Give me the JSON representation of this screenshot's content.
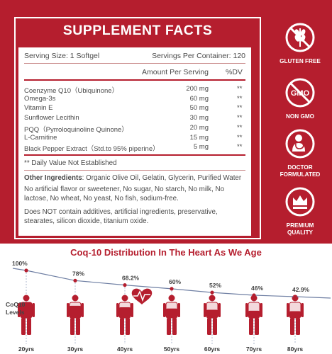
{
  "facts": {
    "title": "SUPPLEMENT FACTS",
    "serving_size": "Serving Size: 1 Softgel",
    "servings_per_container": "Servings Per Container: 120",
    "amount_header": "Amount Per Serving",
    "dv_header": "%DV",
    "ingredients": [
      {
        "name": "Coenzyme Q10（Ubiquinone）",
        "amount": "200 mg",
        "dv": "**"
      },
      {
        "name": "Omega-3s",
        "amount": "60 mg",
        "dv": "**"
      },
      {
        "name": "Vitamin E",
        "amount": "50 mg",
        "dv": "**"
      },
      {
        "name": "Sunflower Lecithin",
        "amount": "30 mg",
        "dv": "**"
      },
      {
        "name": "PQQ（Pyrroloquinoline Quinone）",
        "amount": "20 mg",
        "dv": "**"
      },
      {
        "name": "L-Carnitine",
        "amount": "15 mg",
        "dv": "**"
      },
      {
        "name": "Black Pepper Extract（Std.to 95% piperine）",
        "amount": "5 mg",
        "dv": "**"
      }
    ],
    "daily_value_note": "** Daily Value Not Established",
    "other_ingredients_label": "Other Ingredients",
    "other_ingredients": ": Organic Olive Oil, Gelatin, Glycerin, Purified Water",
    "free_from_lines": [
      "No artificial flavor or sweetener, No sugar, No starch, No milk, No",
      "lactose, No wheat, No yeast, No fish, sodium-free."
    ],
    "does_not_lines": [
      "Does NOT contain additives, artificial ingredients, preservative,",
      "stearates, silicon dioxide, titanium oxide."
    ]
  },
  "badges": [
    {
      "icon": "gluten-free-icon",
      "label_lines": [
        "GLUTEN FREE"
      ]
    },
    {
      "icon": "gmo-icon",
      "label_lines": [
        "NON GMO"
      ]
    },
    {
      "icon": "doctor-icon",
      "label_lines": [
        "DOCTOR",
        "FORMULATED"
      ]
    },
    {
      "icon": "premium-crown-icon",
      "label_lines": [
        "PREMIUM",
        "QUALITY"
      ]
    }
  ],
  "colors": {
    "brand_red": "#b51e2e",
    "chart_line": "#6f7fa3",
    "figure_red": "#b51e2e"
  },
  "chart_data": {
    "type": "line",
    "title": "Coq-10 Distribution In The Heart As We Age",
    "ylabel_lines": [
      "CoQ10",
      "Levels"
    ],
    "categories": [
      "20yrs",
      "30yrs",
      "40yrs",
      "50yrs",
      "60yrs",
      "70yrs",
      "80yrs"
    ],
    "values": [
      100,
      78,
      68.2,
      60,
      52,
      46,
      42.9
    ],
    "value_labels": [
      "100%",
      "78%",
      "68.2%",
      "60%",
      "52%",
      "46%",
      "42.9%"
    ],
    "ylim": [
      0,
      100
    ],
    "grid": false,
    "legend": false
  }
}
